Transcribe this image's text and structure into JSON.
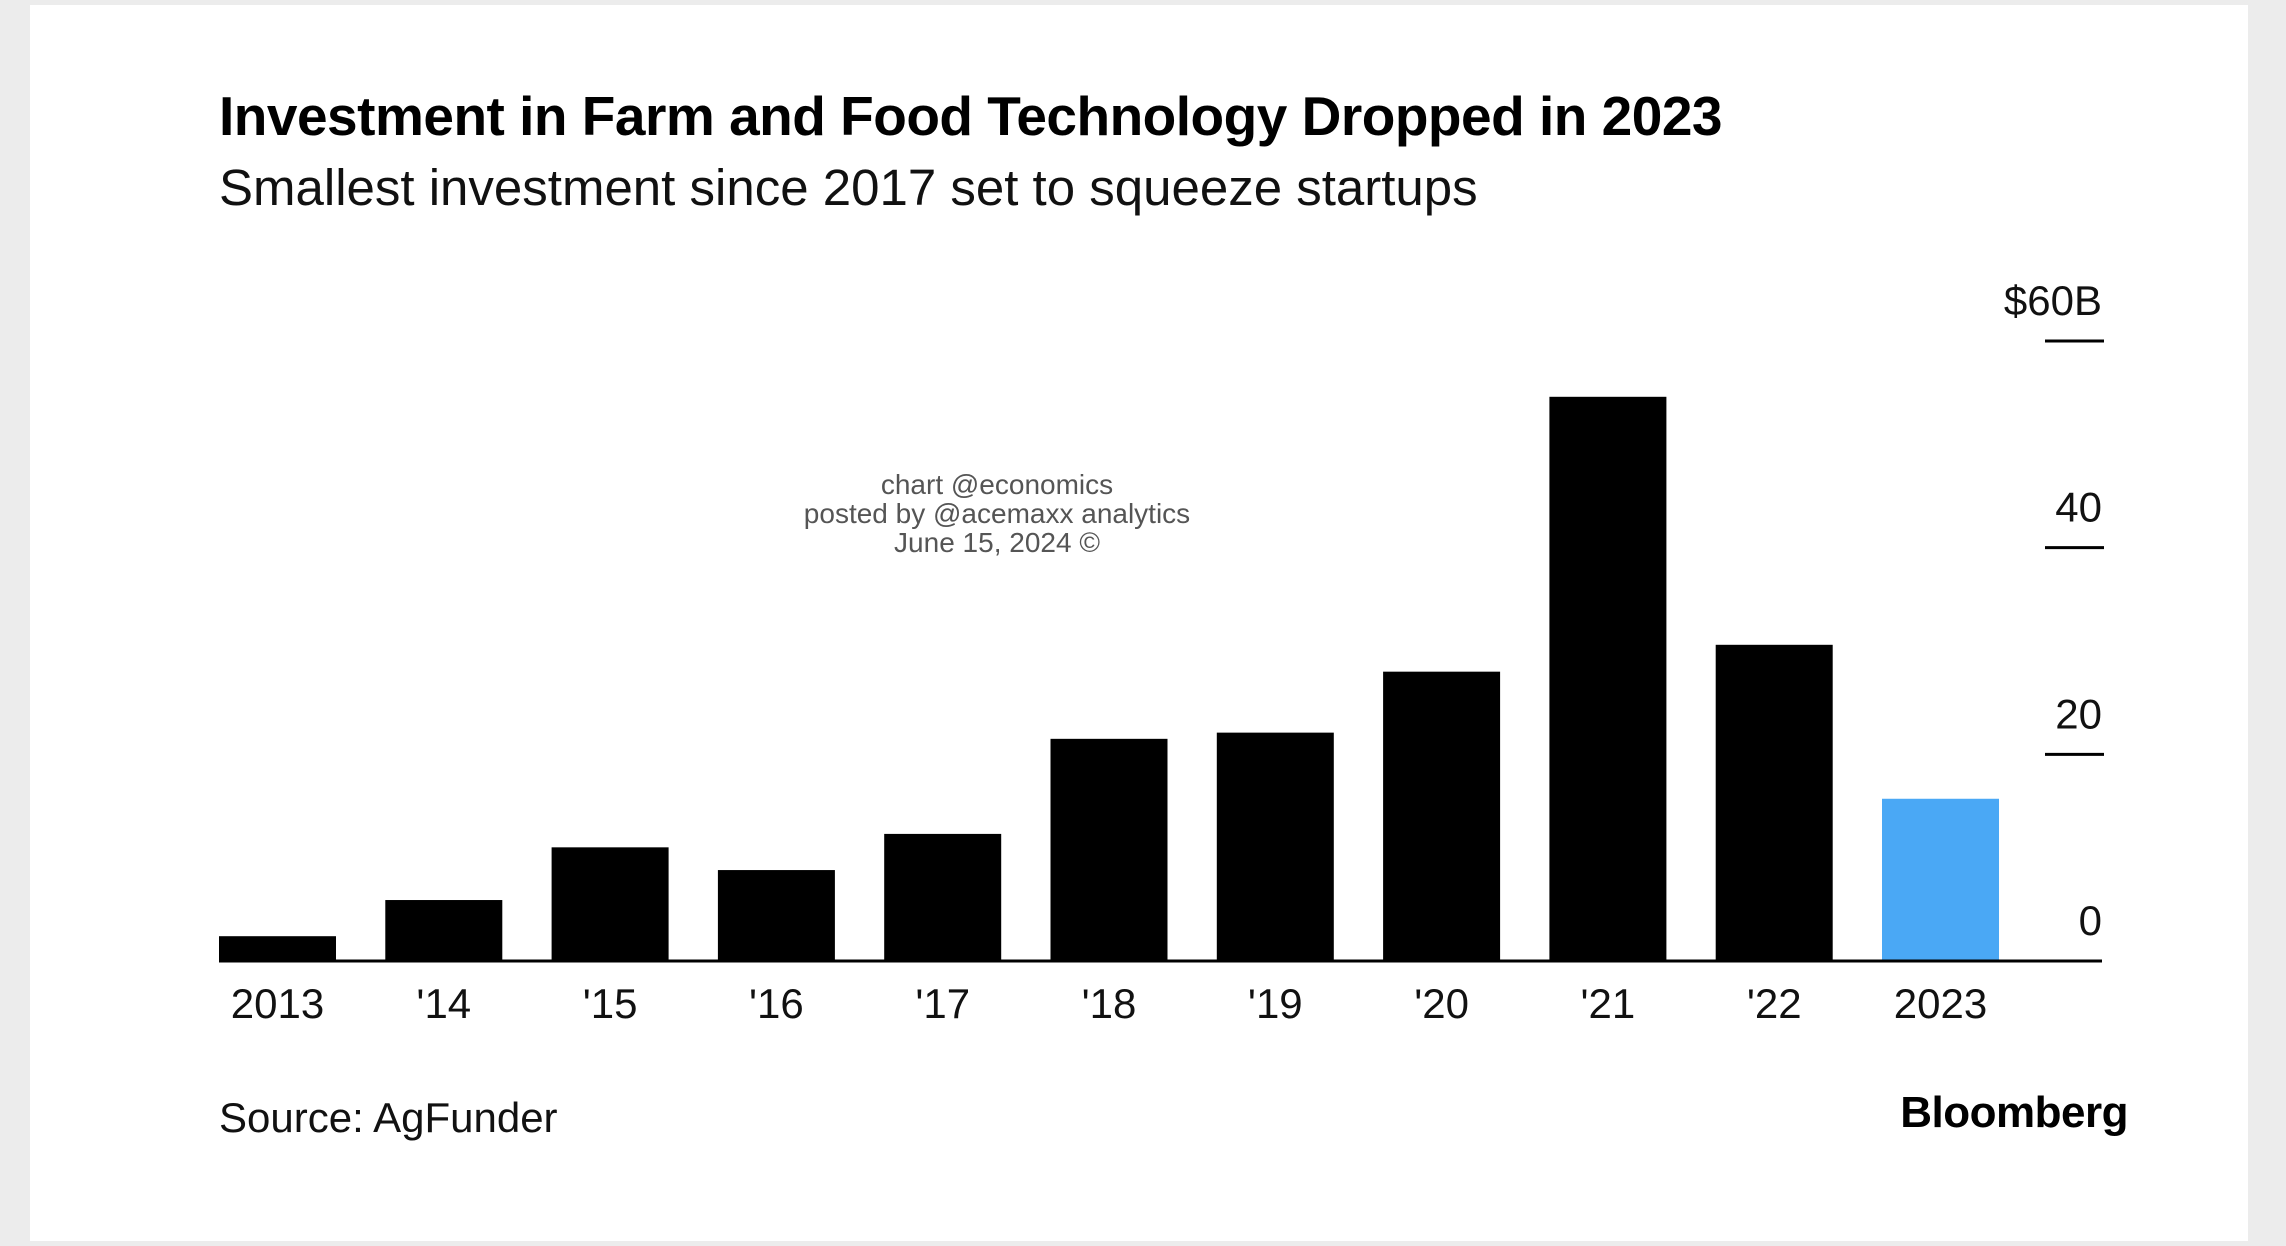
{
  "title": "Investment in Farm and Food Technology Dropped in 2023",
  "subtitle": "Smallest investment since 2017 set to squeeze startups",
  "watermark": [
    "chart @economics",
    "posted by @acemaxx analytics",
    "June 15, 2024 ©"
  ],
  "source": "Source: AgFunder",
  "brand": "Bloomberg",
  "colors": {
    "bar": "#000000",
    "highlight": "#4aa8f5",
    "background": "#ffffff",
    "frame": "#ececec"
  },
  "chart_data": {
    "type": "bar",
    "categories": [
      "2013",
      "'14",
      "'15",
      "'16",
      "'17",
      "'18",
      "'19",
      "'20",
      "'21",
      "'22",
      "2023"
    ],
    "values": [
      2.4,
      5.9,
      11.0,
      8.8,
      12.3,
      21.5,
      22.1,
      28.0,
      54.6,
      30.6,
      15.7
    ],
    "highlight_index": 10,
    "ylim": [
      0,
      60
    ],
    "yticks": [
      0,
      20,
      40,
      60
    ],
    "ytick_labels": [
      "0",
      "20",
      "40",
      "$60B"
    ],
    "y_axis_position": "right",
    "grid": false,
    "xlabel": "",
    "ylabel": ""
  }
}
